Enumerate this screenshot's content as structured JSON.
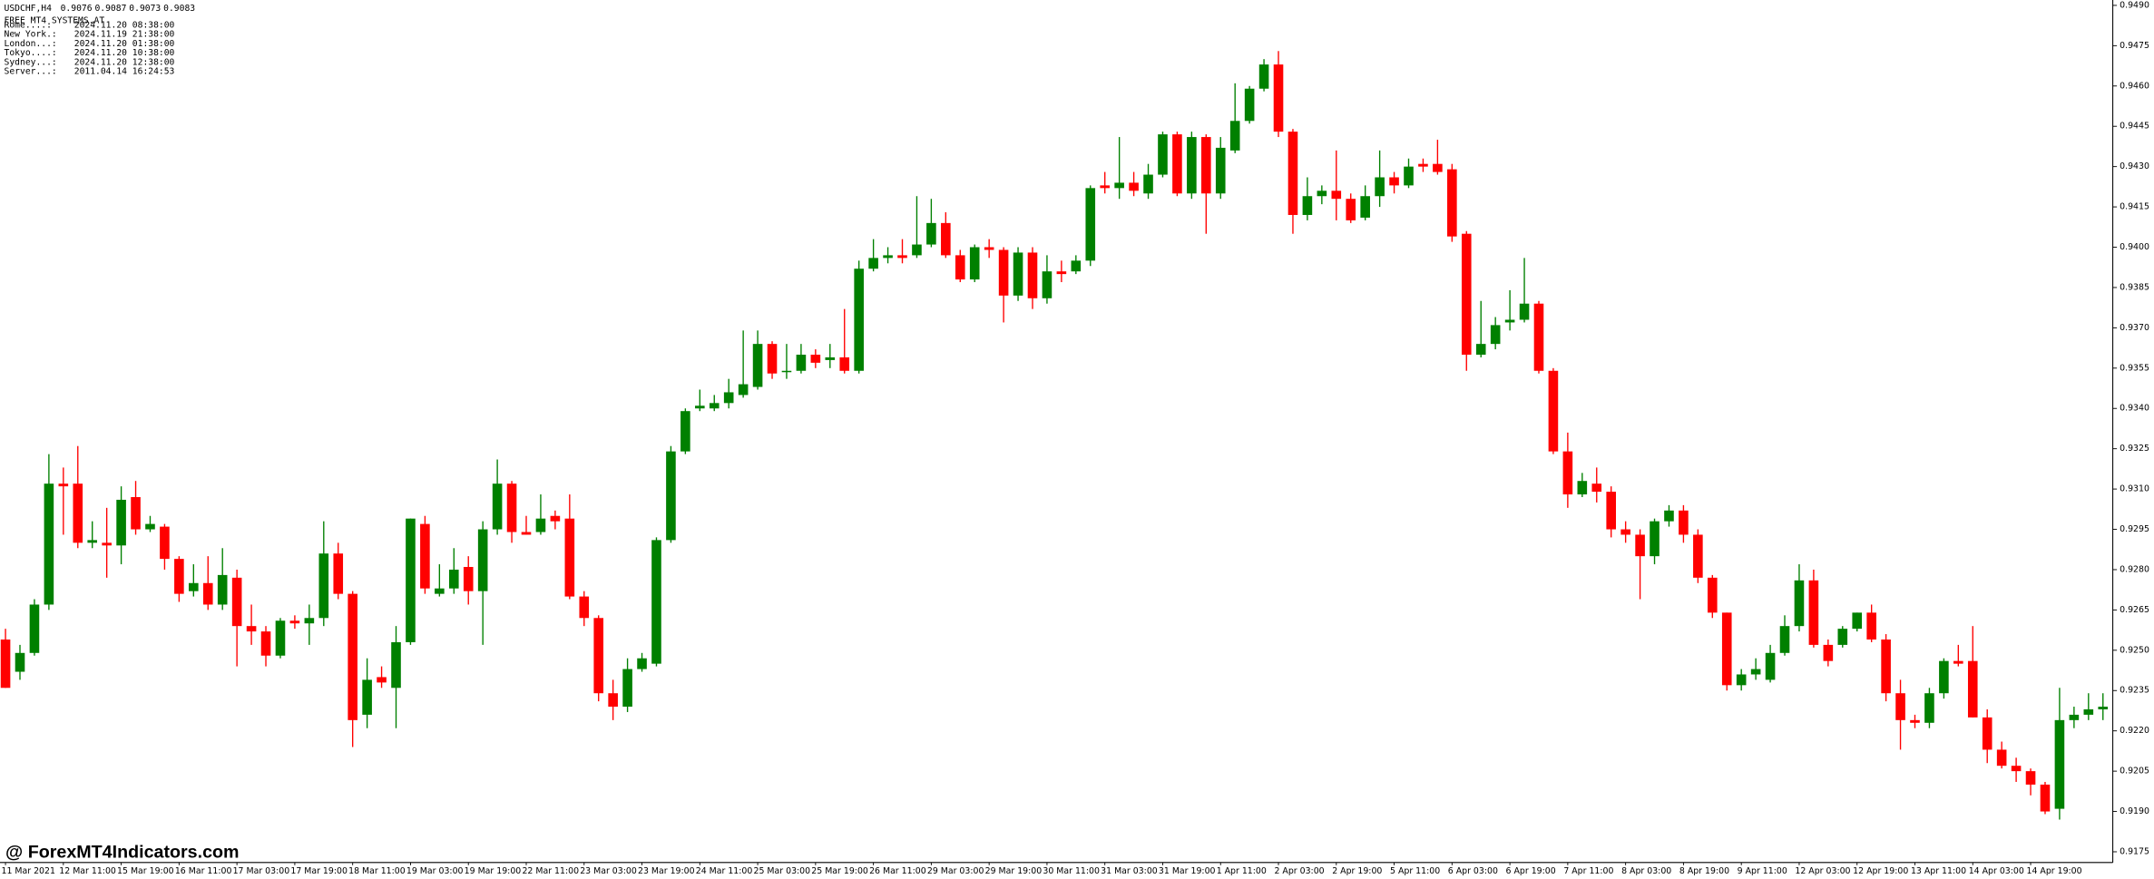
{
  "header": {
    "symbol": "USDCHF,H4",
    "prices": [
      0.9076,
      0.9087,
      0.9073,
      0.9083
    ],
    "caption": "FREE MT4 SYSTEMS.AT",
    "clocks": [
      {
        "label": "Rome....:",
        "time": "2024.11.20 08:38:00",
        "color": "#ff0000"
      },
      {
        "label": "New York.:",
        "time": "2024.11.19 21:38:00",
        "color": "#0000ff"
      },
      {
        "label": "London...:",
        "time": "2024.11.20 01:38:00",
        "color": "#0000ff"
      },
      {
        "label": "Tokyo....:",
        "time": "2024.11.20 10:38:00",
        "color": "#ff0000"
      },
      {
        "label": "Sydney...:",
        "time": "2024.11.20 12:38:00",
        "color": "#ff0000"
      },
      {
        "label": "Server...:",
        "time": "2011.04.14 16:24:53",
        "color": "#0000ff"
      }
    ]
  },
  "watermark": "@ ForexMT4Indicators.com",
  "chart_data": {
    "type": "candlestick",
    "up_color": "#008000",
    "down_color": "#ff0000",
    "categories": [
      "11 Mar 2021",
      null,
      null,
      null,
      "12 Mar 11:00",
      null,
      null,
      null,
      "15 Mar 19:00",
      null,
      null,
      null,
      "16 Mar 11:00",
      null,
      null,
      null,
      "17 Mar 03:00",
      null,
      null,
      null,
      "17 Mar 19:00",
      null,
      null,
      null,
      "18 Mar 11:00",
      null,
      null,
      null,
      "19 Mar 03:00",
      null,
      null,
      null,
      "19 Mar 19:00",
      null,
      null,
      null,
      "22 Mar 11:00",
      null,
      null,
      null,
      "23 Mar 03:00",
      null,
      null,
      null,
      "23 Mar 19:00",
      null,
      null,
      null,
      "24 Mar 11:00",
      null,
      null,
      null,
      "25 Mar 03:00",
      null,
      null,
      null,
      "25 Mar 19:00",
      null,
      null,
      null,
      "26 Mar 11:00",
      null,
      null,
      null,
      "29 Mar 03:00",
      null,
      null,
      null,
      "29 Mar 19:00",
      null,
      null,
      null,
      "30 Mar 11:00",
      null,
      null,
      null,
      "31 Mar 03:00",
      null,
      null,
      null,
      "31 Mar 19:00",
      null,
      null,
      null,
      "1 Apr 11:00",
      null,
      null,
      null,
      "2 Apr 03:00",
      null,
      null,
      null,
      "2 Apr 19:00",
      null,
      null,
      null,
      "5 Apr 11:00",
      null,
      null,
      null,
      "6 Apr 03:00",
      null,
      null,
      null,
      "6 Apr 19:00",
      null,
      null,
      null,
      "7 Apr 11:00",
      null,
      null,
      null,
      "8 Apr 03:00",
      null,
      null,
      null,
      "8 Apr 19:00",
      null,
      null,
      null,
      "9 Apr 11:00",
      null,
      null,
      null,
      "12 Apr 03:00",
      null,
      null,
      null,
      "12 Apr 19:00",
      null,
      null,
      null,
      "13 Apr 11:00",
      null,
      null,
      null,
      "14 Apr 03:00",
      null,
      null,
      null,
      "14 Apr 19:00",
      null,
      null,
      null,
      null,
      null
    ],
    "open": [
      0.9254,
      0.9242,
      0.9249,
      0.9267,
      0.9312,
      0.9312,
      0.929,
      0.929,
      0.9289,
      0.9307,
      0.9295,
      0.9296,
      0.9284,
      0.9272,
      0.9275,
      0.9267,
      0.9277,
      0.9259,
      0.9257,
      0.9248,
      0.9261,
      0.926,
      0.9262,
      0.9286,
      0.9271,
      0.9226,
      0.924,
      0.9236,
      0.9253,
      0.9297,
      0.9271,
      0.9273,
      0.9281,
      0.9272,
      0.9295,
      0.9312,
      0.9294,
      0.9294,
      0.93,
      0.9299,
      0.927,
      0.9262,
      0.9234,
      0.9229,
      0.9243,
      0.9245,
      0.9291,
      0.9324,
      0.934,
      0.934,
      0.9342,
      0.9345,
      0.9348,
      0.9364,
      0.9354,
      0.9354,
      0.936,
      0.9358,
      0.9359,
      0.9354,
      0.9392,
      0.9396,
      0.9397,
      0.9397,
      0.9401,
      0.9409,
      0.9397,
      0.9388,
      0.94,
      0.9399,
      0.9382,
      0.9398,
      0.9381,
      0.9391,
      0.9391,
      0.9395,
      0.9423,
      0.9422,
      0.9424,
      0.942,
      0.9427,
      0.9442,
      0.942,
      0.9441,
      0.942,
      0.9436,
      0.9447,
      0.9459,
      0.9468,
      0.9443,
      0.9412,
      0.9419,
      0.9421,
      0.9418,
      0.9411,
      0.9419,
      0.9426,
      0.9423,
      0.9431,
      0.9431,
      0.9429,
      0.9405,
      0.936,
      0.9364,
      0.9372,
      0.9373,
      0.9379,
      0.9354,
      0.9324,
      0.9308,
      0.9312,
      0.9309,
      0.9295,
      0.9293,
      0.9285,
      0.9298,
      0.9302,
      0.9293,
      0.9277,
      0.9264,
      0.9237,
      0.9241,
      0.9239,
      0.9249,
      0.9259,
      0.9276,
      0.9252,
      0.9252,
      0.9258,
      0.9264,
      0.9254,
      0.9234,
      0.9224,
      0.9223,
      0.9234,
      0.9246,
      0.9246,
      0.9225,
      0.9213,
      0.9207,
      0.9205,
      0.92,
      0.9191,
      0.9224,
      0.9226,
      0.9228
    ],
    "high": [
      0.9258,
      0.9252,
      0.9269,
      0.9323,
      0.9318,
      0.9326,
      0.9298,
      0.9303,
      0.9311,
      0.9313,
      0.93,
      0.9297,
      0.9285,
      0.9282,
      0.9285,
      0.9288,
      0.928,
      0.9267,
      0.9259,
      0.9262,
      0.9263,
      0.9267,
      0.9298,
      0.929,
      0.9272,
      0.9247,
      0.9244,
      0.9259,
      0.9299,
      0.93,
      0.9282,
      0.9288,
      0.9285,
      0.9298,
      0.9321,
      0.9313,
      0.93,
      0.9308,
      0.9302,
      0.9308,
      0.9272,
      0.9263,
      0.9239,
      0.9247,
      0.9249,
      0.9292,
      0.9326,
      0.934,
      0.9347,
      0.9345,
      0.9351,
      0.9369,
      0.9369,
      0.9365,
      0.9364,
      0.9364,
      0.9362,
      0.9364,
      0.9377,
      0.9395,
      0.9403,
      0.94,
      0.9403,
      0.9419,
      0.9418,
      0.9413,
      0.9399,
      0.9401,
      0.9403,
      0.94,
      0.94,
      0.94,
      0.9397,
      0.9395,
      0.9397,
      0.9423,
      0.9428,
      0.9441,
      0.9428,
      0.9431,
      0.9443,
      0.9443,
      0.9443,
      0.9442,
      0.9441,
      0.9461,
      0.946,
      0.947,
      0.9473,
      0.9444,
      0.9426,
      0.9423,
      0.9436,
      0.942,
      0.9423,
      0.9436,
      0.9428,
      0.9433,
      0.9433,
      0.944,
      0.9431,
      0.9406,
      0.938,
      0.9374,
      0.9384,
      0.9396,
      0.938,
      0.9355,
      0.9331,
      0.9316,
      0.9318,
      0.9311,
      0.9298,
      0.9295,
      0.9299,
      0.9304,
      0.9304,
      0.9295,
      0.9278,
      0.9264,
      0.9243,
      0.9247,
      0.9252,
      0.9263,
      0.9282,
      0.928,
      0.9254,
      0.9259,
      0.9264,
      0.9267,
      0.9256,
      0.9239,
      0.9226,
      0.9236,
      0.9247,
      0.9252,
      0.9259,
      0.9228,
      0.9216,
      0.921,
      0.9206,
      0.9201,
      0.9236,
      0.9229,
      0.9234,
      0.9234
    ],
    "low": [
      0.9236,
      0.9239,
      0.9248,
      0.9265,
      0.9293,
      0.9288,
      0.9288,
      0.9277,
      0.9282,
      0.9293,
      0.9294,
      0.928,
      0.9268,
      0.927,
      0.9265,
      0.9265,
      0.9244,
      0.9252,
      0.9244,
      0.9247,
      0.9258,
      0.9252,
      0.9259,
      0.9269,
      0.9214,
      0.9221,
      0.9236,
      0.9221,
      0.9252,
      0.9271,
      0.927,
      0.9271,
      0.9267,
      0.9252,
      0.9293,
      0.929,
      0.9293,
      0.9293,
      0.9295,
      0.9269,
      0.9259,
      0.9231,
      0.9224,
      0.9227,
      0.9242,
      0.9244,
      0.929,
      0.9323,
      0.9339,
      0.9339,
      0.934,
      0.9344,
      0.9347,
      0.9351,
      0.9351,
      0.9353,
      0.9355,
      0.9355,
      0.9353,
      0.9353,
      0.9391,
      0.9394,
      0.9394,
      0.9396,
      0.94,
      0.9396,
      0.9387,
      0.9387,
      0.9396,
      0.9372,
      0.938,
      0.9377,
      0.9379,
      0.9387,
      0.939,
      0.9393,
      0.942,
      0.9418,
      0.9419,
      0.9418,
      0.9426,
      0.9419,
      0.9418,
      0.9405,
      0.9418,
      0.9435,
      0.9446,
      0.9458,
      0.9441,
      0.9405,
      0.941,
      0.9416,
      0.941,
      0.9409,
      0.941,
      0.9415,
      0.942,
      0.9422,
      0.9428,
      0.9427,
      0.9402,
      0.9354,
      0.9359,
      0.9362,
      0.9369,
      0.9372,
      0.9353,
      0.9323,
      0.9303,
      0.9307,
      0.9305,
      0.9292,
      0.929,
      0.9269,
      0.9282,
      0.9296,
      0.929,
      0.9275,
      0.9262,
      0.9235,
      0.9235,
      0.9239,
      0.9238,
      0.9248,
      0.9257,
      0.9251,
      0.9244,
      0.9251,
      0.9257,
      0.9253,
      0.9231,
      0.9213,
      0.9221,
      0.9221,
      0.9232,
      0.9244,
      0.9225,
      0.9208,
      0.9206,
      0.9201,
      0.9196,
      0.9189,
      0.9187,
      0.9221,
      0.9224,
      0.9224
    ],
    "close": [
      0.9236,
      0.9249,
      0.9267,
      0.9312,
      0.9311,
      0.929,
      0.9291,
      0.9289,
      0.9306,
      0.9295,
      0.9297,
      0.9284,
      0.9271,
      0.9275,
      0.9267,
      0.9278,
      0.9259,
      0.9257,
      0.9248,
      0.9261,
      0.926,
      0.9262,
      0.9286,
      0.9271,
      0.9224,
      0.9239,
      0.9238,
      0.9253,
      0.9299,
      0.9273,
      0.9273,
      0.928,
      0.9272,
      0.9295,
      0.9312,
      0.9294,
      0.9293,
      0.9299,
      0.9298,
      0.927,
      0.9262,
      0.9234,
      0.9229,
      0.9243,
      0.9247,
      0.9291,
      0.9324,
      0.9339,
      0.9341,
      0.9342,
      0.9346,
      0.9349,
      0.9364,
      0.9353,
      0.9354,
      0.936,
      0.9357,
      0.9359,
      0.9354,
      0.9392,
      0.9396,
      0.9397,
      0.9396,
      0.9401,
      0.9409,
      0.9397,
      0.9388,
      0.94,
      0.9399,
      0.9382,
      0.9398,
      0.9381,
      0.9391,
      0.939,
      0.9395,
      0.9422,
      0.9422,
      0.9424,
      0.9421,
      0.9427,
      0.9442,
      0.942,
      0.9441,
      0.942,
      0.9437,
      0.9447,
      0.9459,
      0.9468,
      0.9443,
      0.9412,
      0.9419,
      0.9421,
      0.9418,
      0.941,
      0.9419,
      0.9426,
      0.9423,
      0.943,
      0.943,
      0.9428,
      0.9404,
      0.936,
      0.9364,
      0.9371,
      0.9373,
      0.9379,
      0.9354,
      0.9324,
      0.9308,
      0.9313,
      0.9309,
      0.9295,
      0.9293,
      0.9285,
      0.9298,
      0.9302,
      0.9293,
      0.9277,
      0.9264,
      0.9237,
      0.9241,
      0.9243,
      0.9249,
      0.9259,
      0.9276,
      0.9252,
      0.9246,
      0.9258,
      0.9264,
      0.9254,
      0.9234,
      0.9224,
      0.9223,
      0.9234,
      0.9246,
      0.9245,
      0.9225,
      0.9213,
      0.9207,
      0.9205,
      0.92,
      0.919,
      0.9224,
      0.9226,
      0.9228,
      0.9229
    ],
    "ylim": [
      0.9171,
      0.9492
    ],
    "yticks": [
      {
        "value": 0.949,
        "label": "0.9490"
      },
      0.9475,
      {
        "value": 0.946,
        "label": "0.9460"
      },
      0.9445,
      {
        "value": 0.943,
        "label": "0.9430"
      },
      0.9415,
      {
        "value": 0.94,
        "label": "0.9400"
      },
      0.9385,
      {
        "value": 0.937,
        "label": "0.9370"
      },
      0.9355,
      {
        "value": 0.934,
        "label": "0.9340"
      },
      0.9325,
      {
        "value": 0.931,
        "label": "0.9310"
      },
      0.9295,
      {
        "value": 0.928,
        "label": "0.9280"
      },
      0.9265,
      {
        "value": 0.925,
        "label": "0.9250"
      },
      0.9235,
      {
        "value": 0.922,
        "label": "0.9220"
      },
      0.9205,
      {
        "value": 0.919,
        "label": "0.9190"
      },
      0.9175
    ],
    "grid": false
  }
}
